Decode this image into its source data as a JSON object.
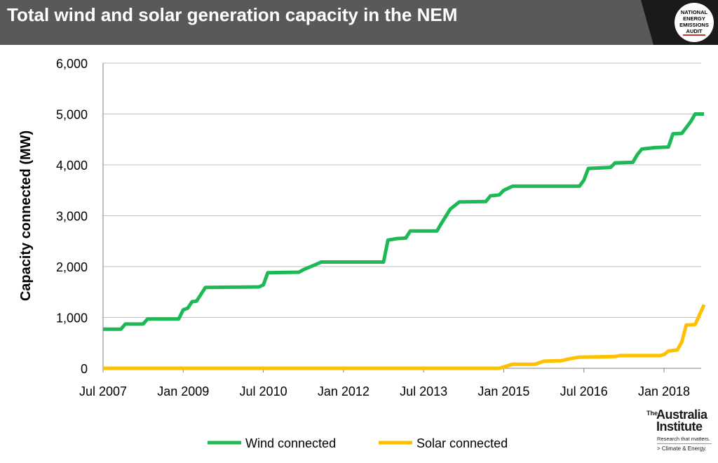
{
  "header": {
    "title": "Total wind and solar generation capacity in the NEM",
    "logo_lines": [
      "NATIONAL",
      "ENERGY",
      "EMISSIONS",
      "AUDIT"
    ]
  },
  "colors": {
    "header_bg": "#595959",
    "wind": "#1db954",
    "solar": "#ffc000",
    "grid": "#bfbfbf"
  },
  "footer_logo": {
    "the": "The",
    "name_line1": "Australia",
    "name_line2": "Institute",
    "tagline": "Research that matters.",
    "sub": "> Climate & Energy."
  },
  "chart_data": {
    "type": "line",
    "title": "Total wind and solar generation capacity in the NEM",
    "xlabel": "",
    "ylabel": "Capacity connected (MW)",
    "ylim": [
      0,
      6000
    ],
    "yticks": [
      0,
      1000,
      2000,
      3000,
      4000,
      5000,
      6000
    ],
    "ytick_labels": [
      "0",
      "1,000",
      "2,000",
      "3,000",
      "4,000",
      "5,000",
      "6,000"
    ],
    "xlim": [
      "2007-07",
      "2018-10"
    ],
    "xticks": [
      "2007-07",
      "2009-01",
      "2010-07",
      "2012-01",
      "2013-07",
      "2015-01",
      "2016-07",
      "2018-01"
    ],
    "xtick_labels": [
      "Jul 2007",
      "Jan 2009",
      "Jul 2010",
      "Jan 2012",
      "Jul 2013",
      "Jan 2015",
      "Jul 2016",
      "Jan 2018"
    ],
    "grid": "horizontal",
    "legend_position": "bottom",
    "series": [
      {
        "name": "Wind connected",
        "color": "#1db954",
        "points": [
          [
            "2007-07",
            770
          ],
          [
            "2007-11",
            770
          ],
          [
            "2007-12",
            870
          ],
          [
            "2008-04",
            870
          ],
          [
            "2008-05",
            970
          ],
          [
            "2008-12",
            970
          ],
          [
            "2009-01",
            1150
          ],
          [
            "2009-02",
            1180
          ],
          [
            "2009-03",
            1310
          ],
          [
            "2009-04",
            1320
          ],
          [
            "2009-06",
            1590
          ],
          [
            "2010-06",
            1600
          ],
          [
            "2010-07",
            1640
          ],
          [
            "2010-08",
            1880
          ],
          [
            "2011-03",
            1890
          ],
          [
            "2011-04",
            1940
          ],
          [
            "2011-07",
            2050
          ],
          [
            "2011-08",
            2090
          ],
          [
            "2012-10",
            2090
          ],
          [
            "2012-11",
            2520
          ],
          [
            "2013-01",
            2550
          ],
          [
            "2013-03",
            2560
          ],
          [
            "2013-04",
            2700
          ],
          [
            "2013-10",
            2700
          ],
          [
            "2013-11",
            2850
          ],
          [
            "2014-01",
            3130
          ],
          [
            "2014-03",
            3270
          ],
          [
            "2014-09",
            3280
          ],
          [
            "2014-10",
            3390
          ],
          [
            "2014-12",
            3410
          ],
          [
            "2015-01",
            3500
          ],
          [
            "2015-03",
            3580
          ],
          [
            "2016-06",
            3580
          ],
          [
            "2016-07",
            3700
          ],
          [
            "2016-08",
            3930
          ],
          [
            "2017-01",
            3950
          ],
          [
            "2017-02",
            4040
          ],
          [
            "2017-06",
            4050
          ],
          [
            "2017-07",
            4200
          ],
          [
            "2017-08",
            4310
          ],
          [
            "2017-11",
            4340
          ],
          [
            "2018-02",
            4350
          ],
          [
            "2018-03",
            4610
          ],
          [
            "2018-05",
            4620
          ],
          [
            "2018-07",
            4850
          ],
          [
            "2018-08",
            5000
          ],
          [
            "2018-10",
            5000
          ]
        ]
      },
      {
        "name": "Solar connected",
        "color": "#ffc000",
        "points": [
          [
            "2007-07",
            0
          ],
          [
            "2014-12",
            0
          ],
          [
            "2015-03",
            80
          ],
          [
            "2015-08",
            80
          ],
          [
            "2015-10",
            140
          ],
          [
            "2016-02",
            150
          ],
          [
            "2016-04",
            190
          ],
          [
            "2016-06",
            220
          ],
          [
            "2017-02",
            230
          ],
          [
            "2017-03",
            250
          ],
          [
            "2017-12",
            250
          ],
          [
            "2018-01",
            270
          ],
          [
            "2018-02",
            340
          ],
          [
            "2018-04",
            360
          ],
          [
            "2018-05",
            520
          ],
          [
            "2018-06",
            850
          ],
          [
            "2018-08",
            860
          ],
          [
            "2018-10",
            1250
          ]
        ]
      }
    ]
  }
}
